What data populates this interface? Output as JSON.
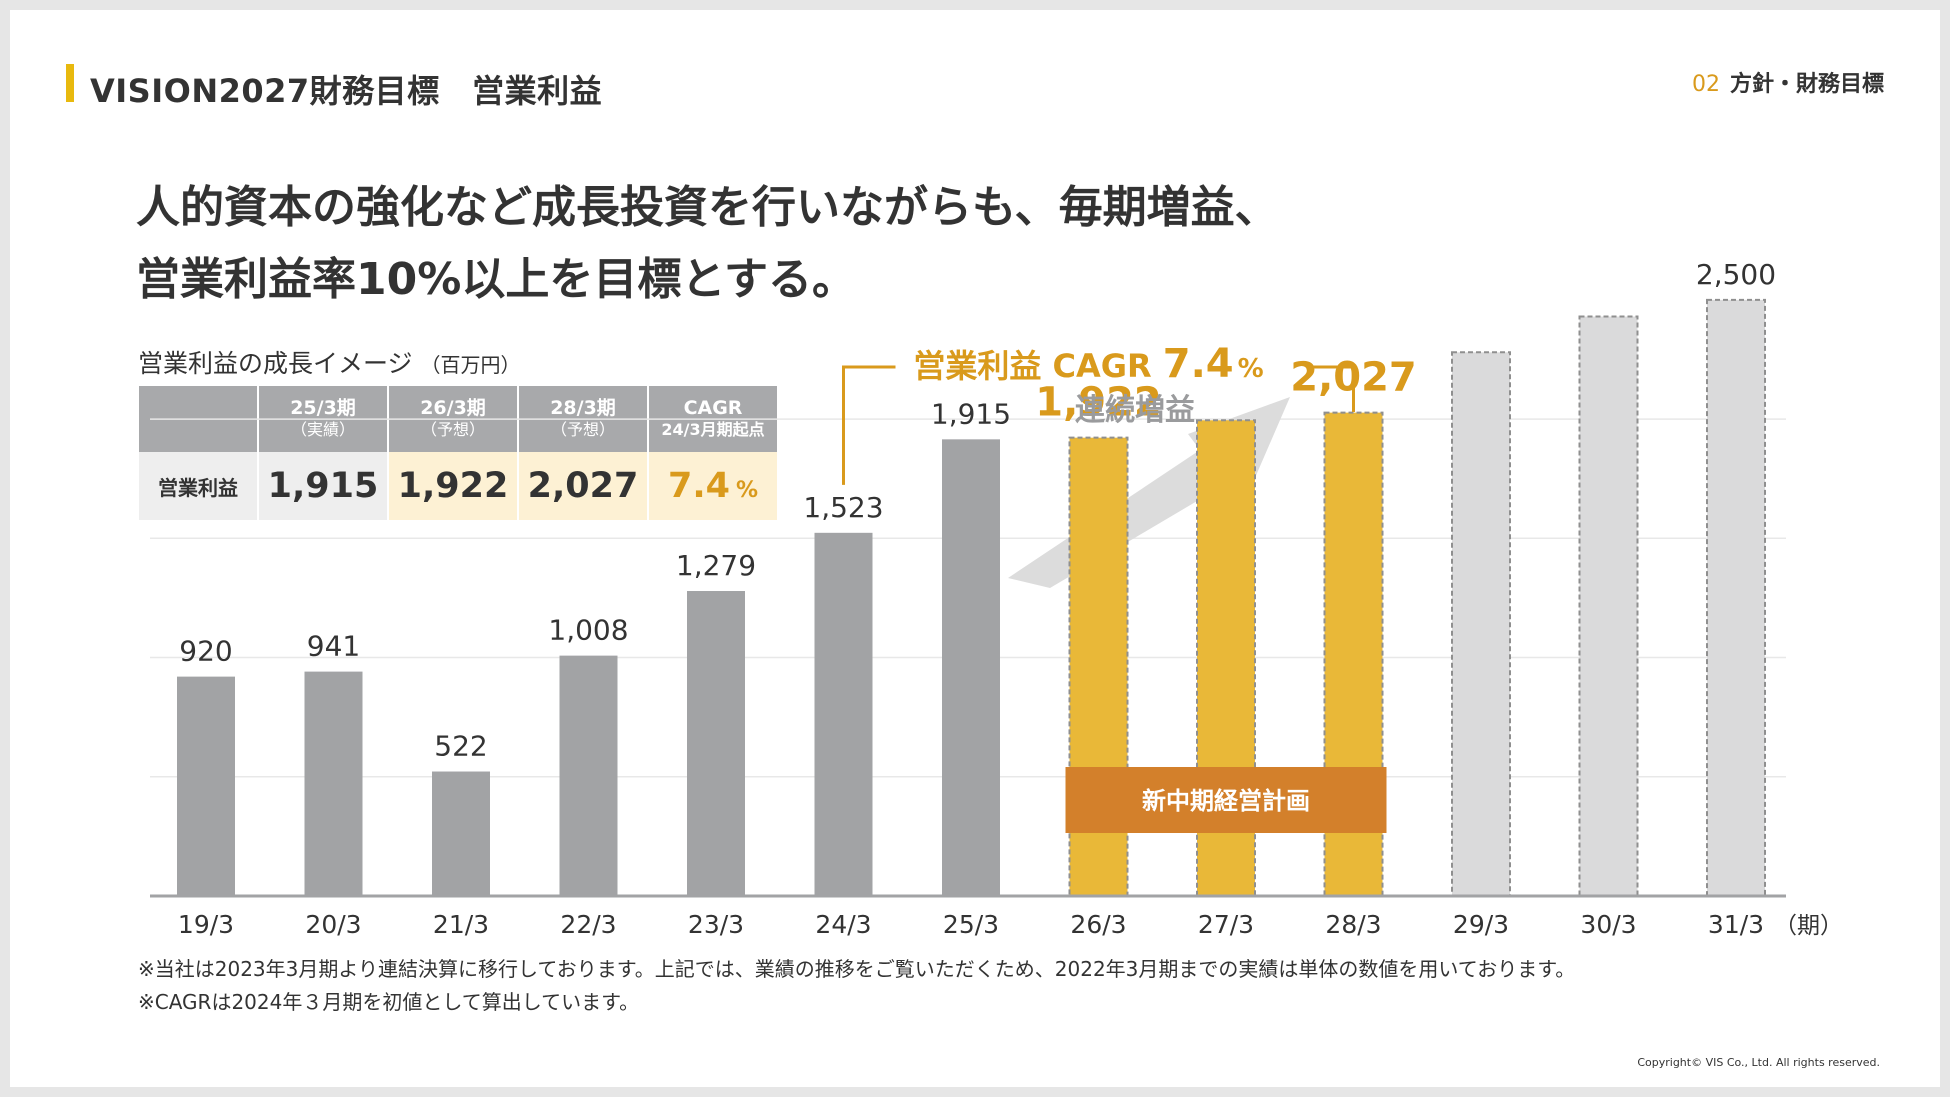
{
  "header": {
    "title": "VISION2027財務目標　営業利益",
    "section_number": "02",
    "section_label": "方針・財務目標"
  },
  "headline": {
    "line1": "人的資本の強化など成長投資を行いながらも、毎期増益、",
    "line2": "営業利益率10%以上を目標とする。"
  },
  "subtitle": {
    "text": "営業利益の成長イメージ",
    "unit": "（百万円）"
  },
  "summary_table": {
    "headers": [
      {
        "main": "25/3期",
        "sub": "（実績）"
      },
      {
        "main": "26/3期",
        "sub": "（予想）"
      },
      {
        "main": "28/3期",
        "sub": "（予想）"
      },
      {
        "main": "CAGR",
        "sub": "24/3月期起点"
      }
    ],
    "row_label": "営業利益",
    "values": [
      "1,915",
      "1,922",
      "2,027",
      "7.4"
    ],
    "cagr_unit": "%"
  },
  "chart_data": {
    "type": "bar",
    "categories": [
      "19/3",
      "20/3",
      "21/3",
      "22/3",
      "23/3",
      "24/3",
      "25/3",
      "26/3",
      "27/3",
      "28/3",
      "29/3",
      "30/3",
      "31/3"
    ],
    "period_suffix": "（期）",
    "values": [
      920,
      941,
      522,
      1008,
      1279,
      1523,
      1915,
      1922,
      1995,
      2027,
      2280,
      2430,
      2500
    ],
    "display_labels": [
      "920",
      "941",
      "522",
      "1,008",
      "1,279",
      "1,523",
      "1,915",
      "1,922",
      "",
      "2,027",
      "",
      "",
      "2,500"
    ],
    "bar_kinds": [
      "actual",
      "actual",
      "actual",
      "actual",
      "actual",
      "actual",
      "actual",
      "plan",
      "plan",
      "plan",
      "target",
      "target",
      "target"
    ],
    "ylim": [
      0,
      2600
    ],
    "cagr_label": {
      "prefix": "営業利益 CAGR ",
      "value": "7.4",
      "unit": "%"
    },
    "arrow_label": "連続増益",
    "plan_band_label": "新中期経営計画",
    "colors": {
      "actual": "#a2a3a5",
      "plan": "#e9b838",
      "target": "#dadadb",
      "band": "#d3802b",
      "highlight_text": "#d99a1c",
      "grid": "#e8e8e8",
      "axis": "#a2a3a5"
    }
  },
  "notes": [
    "※当社は2023年3月期より連結決算に移行しております。上記では、業績の推移をご覧いただくため、2022年3月期までの実績は単体の数値を用いております。",
    "※CAGRは2024年３月期を初値として算出しています。"
  ],
  "copyright": "Copyright© VIS Co., Ltd. All rights reserved."
}
